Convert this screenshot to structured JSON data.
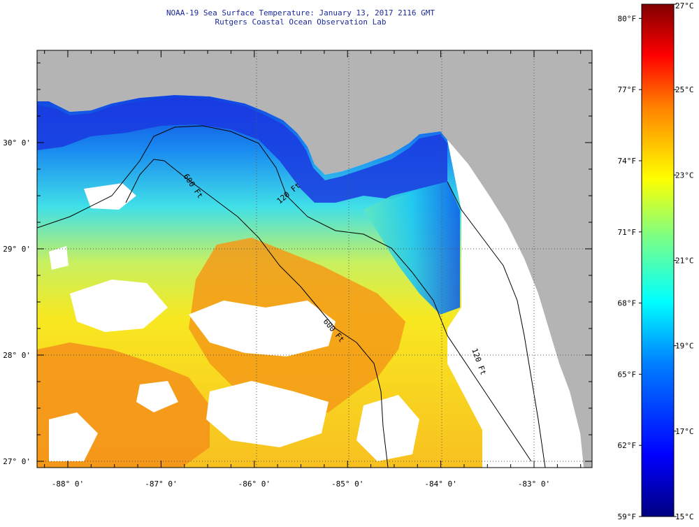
{
  "header": {
    "title": "NOAA-19 Sea Surface Temperature:  January 13, 2017 2116 GMT",
    "subtitle": "Rutgers Coastal Ocean Observation Lab"
  },
  "map": {
    "longitude_ticks": [
      {
        "value": -88,
        "label": "-88° 0'"
      },
      {
        "value": -87,
        "label": "-87° 0'"
      },
      {
        "value": -86,
        "label": "-86° 0'"
      },
      {
        "value": -85,
        "label": "-85° 0'"
      },
      {
        "value": -84,
        "label": "-84° 0'"
      },
      {
        "value": -83,
        "label": "-83° 0'"
      }
    ],
    "latitude_ticks": [
      {
        "value": 30,
        "label": "30° 0'"
      },
      {
        "value": 29,
        "label": "29° 0'"
      },
      {
        "value": 28,
        "label": "28° 0'"
      },
      {
        "value": 27,
        "label": "27° 0'"
      }
    ],
    "contours": [
      {
        "name": "120-ft-isobath",
        "label": "120 Ft"
      },
      {
        "name": "600-ft-isobath-west",
        "label": "600 Ft"
      },
      {
        "name": "600-ft-isobath-south",
        "label": "600 Ft"
      },
      {
        "name": "120-ft-isobath-east",
        "label": "120 Ft"
      }
    ],
    "colors": {
      "land": "#b4b4b4",
      "no_data": "#ffffff",
      "grid": "#555555"
    }
  },
  "colorbar": {
    "celsius_labels": [
      {
        "value": 27,
        "label": "27°C"
      },
      {
        "value": 25,
        "label": "25°C"
      },
      {
        "value": 23,
        "label": "23°C"
      },
      {
        "value": 21,
        "label": "21°C"
      },
      {
        "value": 19,
        "label": "19°C"
      },
      {
        "value": 17,
        "label": "17°C"
      },
      {
        "value": 15,
        "label": "15°C"
      }
    ],
    "fahrenheit_labels": [
      {
        "value": 80,
        "label": "80°F"
      },
      {
        "value": 77,
        "label": "77°F"
      },
      {
        "value": 74,
        "label": "74°F"
      },
      {
        "value": 71,
        "label": "71°F"
      },
      {
        "value": 68,
        "label": "68°F"
      },
      {
        "value": 65,
        "label": "65°F"
      },
      {
        "value": 62,
        "label": "62°F"
      },
      {
        "value": 59,
        "label": "59°F"
      }
    ],
    "range_celsius": [
      15,
      27
    ],
    "stops": [
      "#000080",
      "#0000ff",
      "#0080ff",
      "#00ffff",
      "#80ff80",
      "#ffff00",
      "#ff8000",
      "#ff0000",
      "#800000"
    ]
  }
}
